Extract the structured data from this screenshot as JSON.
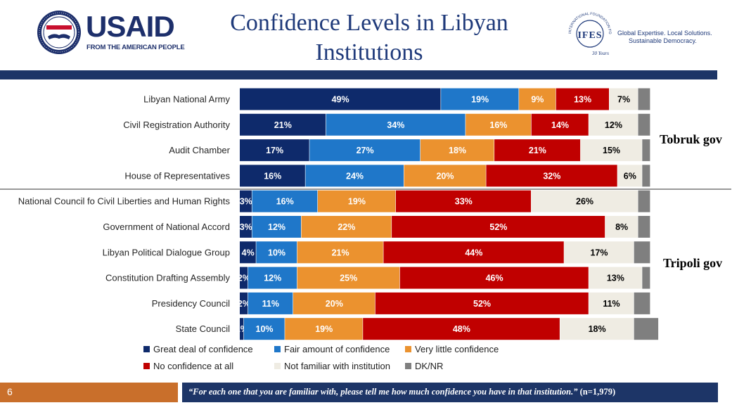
{
  "header": {
    "title_line1": "Confidence Levels in Libyan",
    "title_line2": "Institutions",
    "usaid_wordmark": "USAID",
    "usaid_tagline": "FROM THE AMERICAN PEOPLE",
    "ifes_emblem_text": "INTERNATIONAL FOUNDATION FOR ELECTORAL SYSTEMS",
    "ifes_letters": "IFES",
    "ifes_years": "30 Years",
    "ifes_tagline_line1": "Global Expertise. Local Solutions.",
    "ifes_tagline_line2": "Sustainable Democracy."
  },
  "groups": {
    "tobruk": "Tobruk gov",
    "tripoli": "Tripoli gov"
  },
  "colors": {
    "great": "#0e2a6b",
    "fair": "#1f77c9",
    "little": "#eb922f",
    "none": "#c00000",
    "not_familiar": "#efece3",
    "dk": "#7f7f7f",
    "brand_navy": "#1d3567",
    "brand_orange": "#c96f2b"
  },
  "chart_data": {
    "type": "bar",
    "orientation": "horizontal",
    "stacked": true,
    "xlim": [
      0,
      100
    ],
    "categories": [
      "Libyan National Army",
      "Civil Registration Authority",
      "Audit Chamber",
      "House of Representatives",
      "National Council fo Civil Liberties and Human Rights",
      "Government of National Accord",
      "Libyan Political Dialogue Group",
      "Constitution Drafting Assembly",
      "Presidency Council",
      "State Council"
    ],
    "series": [
      {
        "name": "Great deal of confidence",
        "key": "great",
        "values": [
          49,
          21,
          17,
          16,
          3,
          3,
          4,
          2,
          2,
          1
        ]
      },
      {
        "name": "Fair amount of confidence",
        "key": "fair",
        "values": [
          19,
          34,
          27,
          24,
          16,
          12,
          10,
          12,
          11,
          10
        ]
      },
      {
        "name": "Very little confidence",
        "key": "little",
        "values": [
          9,
          16,
          18,
          20,
          19,
          22,
          21,
          25,
          20,
          19
        ]
      },
      {
        "name": "No confidence at all",
        "key": "none",
        "values": [
          13,
          14,
          21,
          32,
          33,
          52,
          44,
          46,
          52,
          48
        ]
      },
      {
        "name": "Not familiar with institution",
        "key": "not_familiar",
        "values": [
          7,
          12,
          15,
          6,
          26,
          8,
          17,
          13,
          11,
          18
        ]
      },
      {
        "name": "DK/NR",
        "key": "dk",
        "values": [
          3,
          3,
          2,
          2,
          3,
          3,
          4,
          2,
          4,
          6
        ]
      }
    ],
    "groups": [
      {
        "name": "Tobruk gov",
        "categories": [
          0,
          1,
          2,
          3
        ]
      },
      {
        "name": "Tripoli gov",
        "categories": [
          4,
          5,
          6,
          7,
          8,
          9
        ]
      }
    ],
    "legend_position": "bottom"
  },
  "footer": {
    "page_number": "6",
    "question": "“For each one that you are familiar with, please tell me how much confidence you have in that institution.”",
    "sample": "(n=1,979)"
  }
}
